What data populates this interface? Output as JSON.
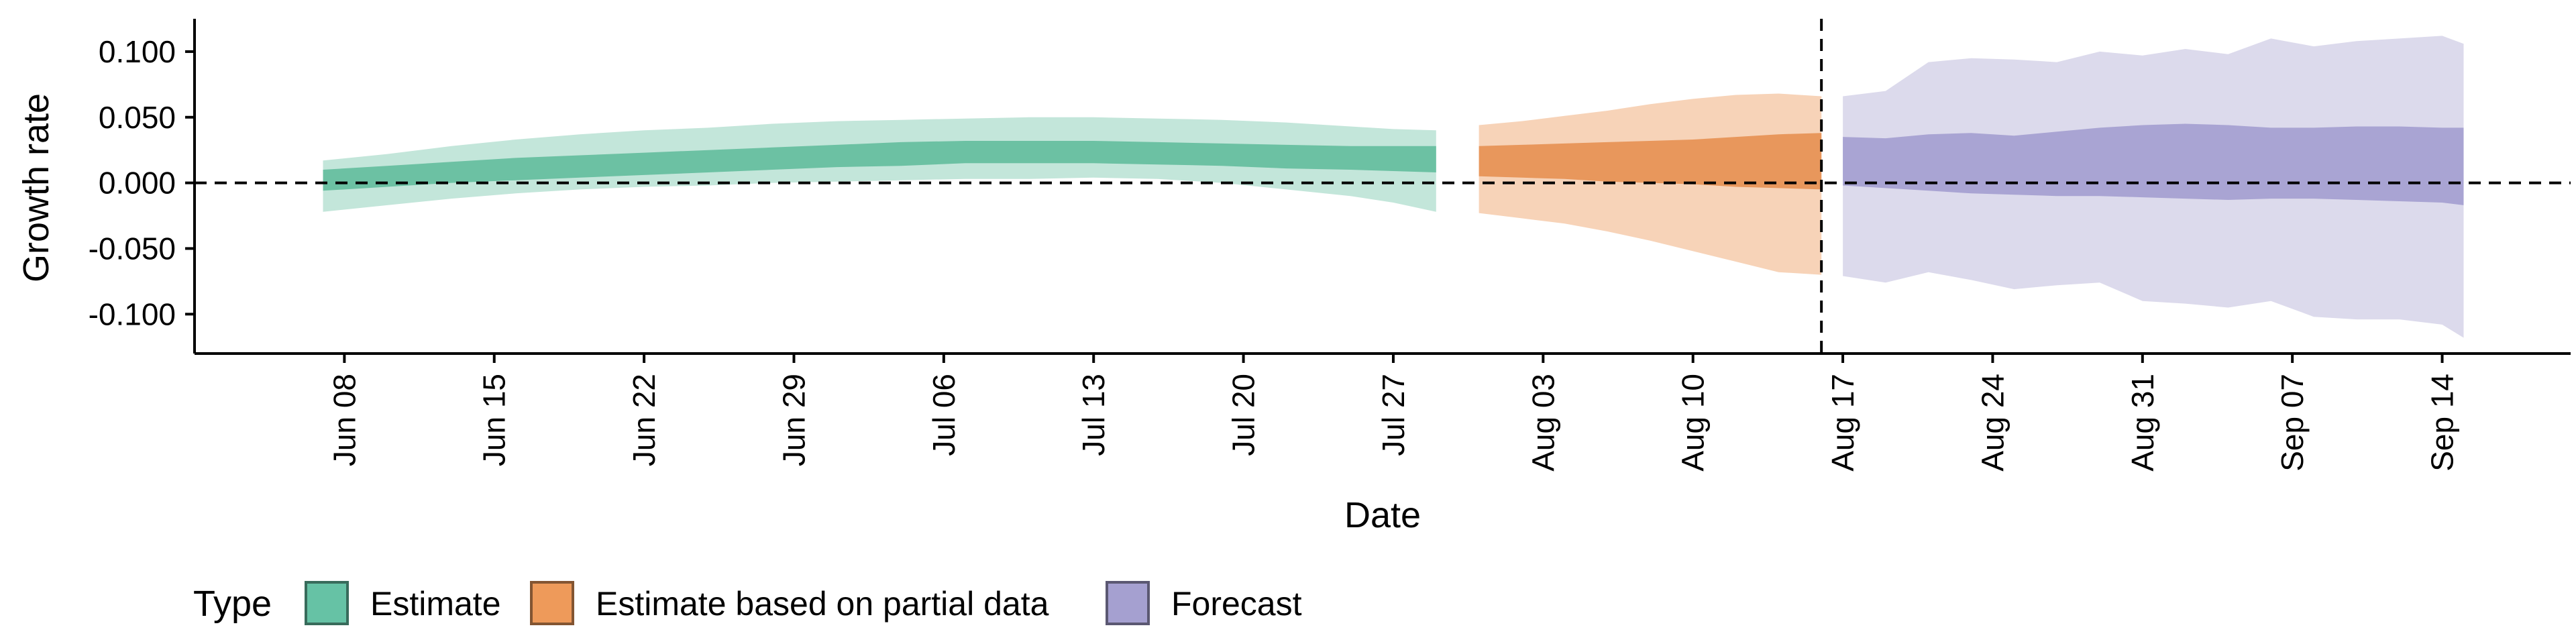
{
  "chart_data": {
    "type": "area",
    "title": "",
    "xlabel": "Date",
    "ylabel": "Growth rate",
    "ylim": [
      -0.13,
      0.125
    ],
    "xlim": [
      "2020-06-01",
      "2020-09-20"
    ],
    "reference_line_y": 0.0,
    "forecast_start_date": "2020-08-16",
    "y_ticks": [
      0.1,
      0.05,
      0.0,
      -0.05,
      -0.1
    ],
    "y_tick_labels": [
      "0.100",
      "0.050",
      "0.000",
      "-0.050",
      "-0.100"
    ],
    "x_ticks": [
      "2020-06-08",
      "2020-06-15",
      "2020-06-22",
      "2020-06-29",
      "2020-07-06",
      "2020-07-13",
      "2020-07-20",
      "2020-07-27",
      "2020-08-03",
      "2020-08-10",
      "2020-08-17",
      "2020-08-24",
      "2020-08-31",
      "2020-09-07",
      "2020-09-14"
    ],
    "x_tick_labels": [
      "Jun 08",
      "Jun 15",
      "Jun 22",
      "Jun 29",
      "Jul 06",
      "Jul 13",
      "Jul 20",
      "Jul 27",
      "Aug 03",
      "Aug 10",
      "Aug 17",
      "Aug 24",
      "Aug 31",
      "Sep 07",
      "Sep 14"
    ],
    "legend": {
      "title": "Type",
      "position": "bottom-left",
      "entries": [
        {
          "label": "Estimate",
          "color": "#66c2a5"
        },
        {
          "label": "Estimate based on partial data",
          "color": "#ee9a5a"
        },
        {
          "label": "Forecast",
          "color": "#a5a0d0"
        }
      ]
    },
    "series": [
      {
        "name": "Estimate",
        "color_outer": "#c3e6da",
        "color_inner": "#6cc1a3",
        "x": [
          "2020-06-07",
          "2020-06-10",
          "2020-06-13",
          "2020-06-16",
          "2020-06-19",
          "2020-06-22",
          "2020-06-25",
          "2020-06-28",
          "2020-07-01",
          "2020-07-04",
          "2020-07-07",
          "2020-07-10",
          "2020-07-13",
          "2020-07-16",
          "2020-07-19",
          "2020-07-22",
          "2020-07-25",
          "2020-07-27",
          "2020-07-29"
        ],
        "outer_upper": [
          0.017,
          0.022,
          0.028,
          0.033,
          0.037,
          0.04,
          0.042,
          0.045,
          0.047,
          0.048,
          0.049,
          0.05,
          0.05,
          0.049,
          0.048,
          0.046,
          0.043,
          0.041,
          0.04
        ],
        "outer_lower": [
          -0.022,
          -0.017,
          -0.012,
          -0.008,
          -0.005,
          -0.003,
          -0.002,
          0.0,
          0.001,
          0.002,
          0.003,
          0.003,
          0.004,
          0.003,
          0.0,
          -0.005,
          -0.01,
          -0.015,
          -0.022
        ],
        "inner_upper": [
          0.01,
          0.013,
          0.016,
          0.019,
          0.021,
          0.023,
          0.025,
          0.027,
          0.029,
          0.031,
          0.032,
          0.032,
          0.032,
          0.031,
          0.03,
          0.029,
          0.028,
          0.028,
          0.028
        ],
        "inner_lower": [
          -0.006,
          -0.003,
          0.0,
          0.002,
          0.004,
          0.006,
          0.008,
          0.01,
          0.012,
          0.013,
          0.015,
          0.015,
          0.015,
          0.014,
          0.013,
          0.011,
          0.01,
          0.009,
          0.008
        ]
      },
      {
        "name": "Estimate based on partial data",
        "color_outer": "#f7d3b8",
        "color_inner": "#e8975c",
        "x": [
          "2020-07-31",
          "2020-08-02",
          "2020-08-04",
          "2020-08-06",
          "2020-08-08",
          "2020-08-10",
          "2020-08-12",
          "2020-08-14",
          "2020-08-16"
        ],
        "outer_upper": [
          0.044,
          0.047,
          0.051,
          0.055,
          0.06,
          0.064,
          0.067,
          0.068,
          0.066
        ],
        "outer_lower": [
          -0.023,
          -0.027,
          -0.031,
          -0.037,
          -0.044,
          -0.052,
          -0.06,
          -0.068,
          -0.07
        ],
        "inner_upper": [
          0.028,
          0.029,
          0.03,
          0.031,
          0.032,
          0.033,
          0.035,
          0.037,
          0.038
        ],
        "inner_lower": [
          0.005,
          0.004,
          0.003,
          0.001,
          0.0,
          -0.001,
          -0.003,
          -0.004,
          -0.005
        ]
      },
      {
        "name": "Forecast",
        "color_outer": "#dcdaec",
        "color_inner": "#a9a4d3",
        "x": [
          "2020-08-17",
          "2020-08-19",
          "2020-08-21",
          "2020-08-23",
          "2020-08-25",
          "2020-08-27",
          "2020-08-29",
          "2020-08-31",
          "2020-09-02",
          "2020-09-04",
          "2020-09-06",
          "2020-09-08",
          "2020-09-10",
          "2020-09-12",
          "2020-09-14",
          "2020-09-15"
        ],
        "outer_upper": [
          0.066,
          0.07,
          0.092,
          0.095,
          0.094,
          0.092,
          0.1,
          0.097,
          0.102,
          0.098,
          0.11,
          0.104,
          0.108,
          0.11,
          0.112,
          0.106
        ],
        "outer_lower": [
          -0.071,
          -0.076,
          -0.068,
          -0.074,
          -0.081,
          -0.078,
          -0.076,
          -0.09,
          -0.092,
          -0.095,
          -0.09,
          -0.102,
          -0.104,
          -0.104,
          -0.108,
          -0.118
        ],
        "inner_upper": [
          0.035,
          0.034,
          0.037,
          0.038,
          0.036,
          0.039,
          0.042,
          0.044,
          0.045,
          0.044,
          0.042,
          0.042,
          0.043,
          0.043,
          0.042,
          0.042
        ],
        "inner_lower": [
          -0.002,
          -0.004,
          -0.006,
          -0.008,
          -0.009,
          -0.01,
          -0.01,
          -0.011,
          -0.012,
          -0.013,
          -0.012,
          -0.012,
          -0.013,
          -0.014,
          -0.015,
          -0.017
        ]
      }
    ]
  }
}
